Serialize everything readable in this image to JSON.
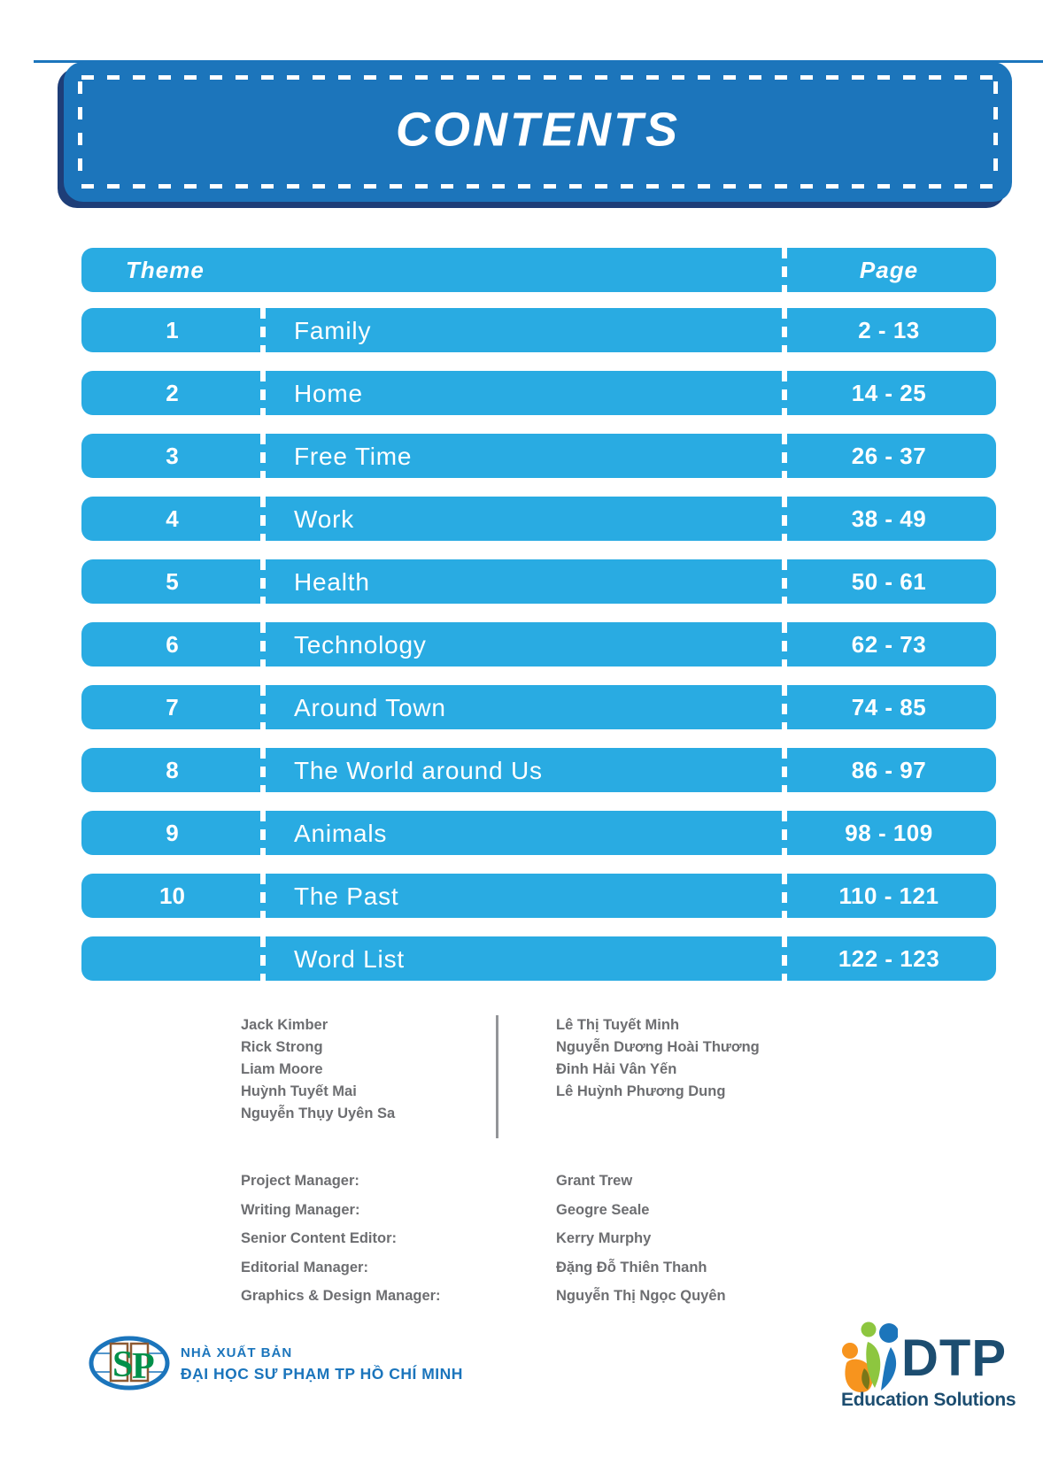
{
  "banner": {
    "title": "CONTENTS"
  },
  "table": {
    "header": {
      "theme_label": "Theme",
      "page_label": "Page"
    },
    "rows": [
      {
        "num": "1",
        "theme": "Family",
        "pages": "2 - 13"
      },
      {
        "num": "2",
        "theme": "Home",
        "pages": "14 - 25"
      },
      {
        "num": "3",
        "theme": "Free Time",
        "pages": "26 - 37"
      },
      {
        "num": "4",
        "theme": "Work",
        "pages": "38 - 49"
      },
      {
        "num": "5",
        "theme": "Health",
        "pages": "50 - 61"
      },
      {
        "num": "6",
        "theme": "Technology",
        "pages": "62 - 73"
      },
      {
        "num": "7",
        "theme": "Around Town",
        "pages": "74 - 85"
      },
      {
        "num": "8",
        "theme": "The World around Us",
        "pages": "86 - 97"
      },
      {
        "num": "9",
        "theme": "Animals",
        "pages": "98 - 109"
      },
      {
        "num": "10",
        "theme": "The Past",
        "pages": "110 - 121"
      },
      {
        "num": "",
        "theme": "Word List",
        "pages": "122 - 123"
      }
    ]
  },
  "credits": {
    "authors_left": [
      "Jack Kimber",
      "Rick Strong",
      "Liam Moore",
      "Huỳnh Tuyết Mai",
      "Nguyễn Thụy Uyên Sa"
    ],
    "authors_right": [
      "Lê Thị Tuyết Minh",
      "Nguyễn Dương Hoài Thương",
      "Đinh Hải Vân Yến",
      "Lê Huỳnh Phương Dung"
    ],
    "roles": [
      {
        "label": "Project Manager:",
        "value": "Grant Trew"
      },
      {
        "label": "Writing Manager:",
        "value": "Geogre Seale"
      },
      {
        "label": "Senior Content Editor:",
        "value": "Kerry Murphy"
      },
      {
        "label": "Editorial Manager:",
        "value": "Đặng Đỗ Thiên Thanh"
      },
      {
        "label": "Graphics & Design Manager:",
        "value": "Nguyễn Thị Ngọc Quyên"
      }
    ]
  },
  "publisher": {
    "monogram": "SP",
    "line1": "NHÀ XUẤT BẢN",
    "line2": "ĐẠI HỌC SƯ PHẠM TP HỒ CHÍ MINH"
  },
  "dtp_logo": {
    "name": "DTP",
    "tagline": "Education Solutions"
  },
  "colors": {
    "row_blue": "#29ABE2",
    "banner_blue": "#1C75BB",
    "banner_shadow_navy": "#1E3E78",
    "credits_gray": "#6D6E71",
    "publisher_blue": "#1B75BC",
    "dtp_navy": "#1C4D70",
    "logo_green": "#00904A",
    "logo_orange": "#F7941E",
    "logo_leaf_green": "#8DC63F"
  }
}
